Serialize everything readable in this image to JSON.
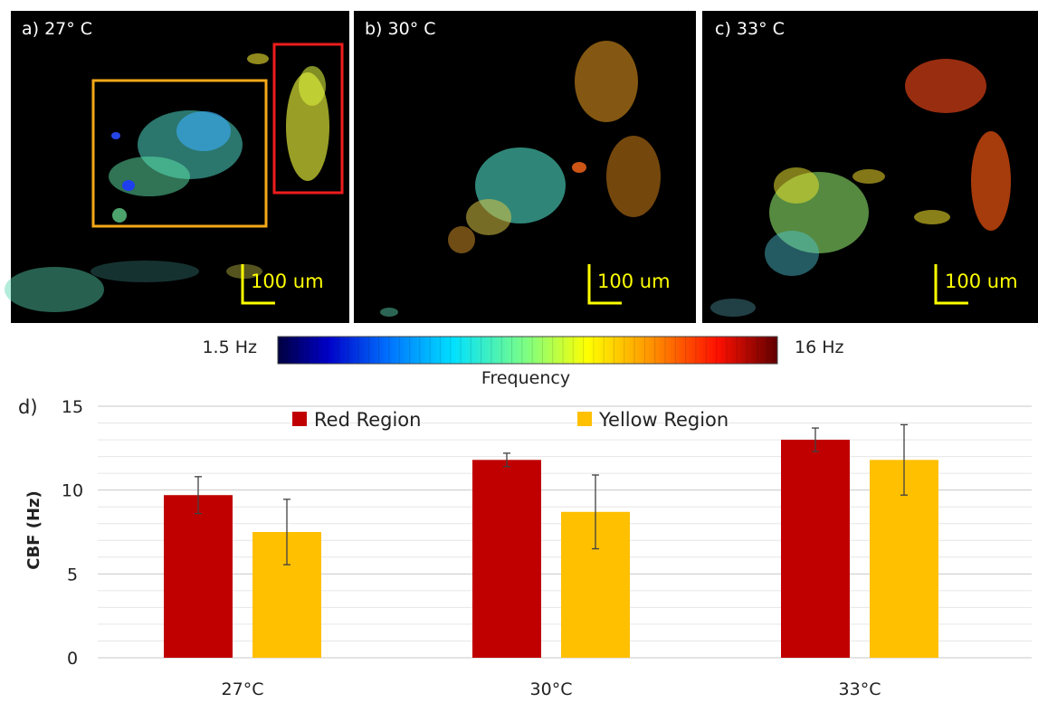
{
  "images": {
    "panels": [
      {
        "label": "a)  27° C",
        "scale_bar": "100 um"
      },
      {
        "label": "b) 30° C",
        "scale_bar": "100 um"
      },
      {
        "label": "c) 33° C",
        "scale_bar": "100 um"
      }
    ],
    "region_box_colors": {
      "red_region": "#ee1c1c",
      "yellow_region": "#f4a818"
    },
    "scale_bar_color": "#ffff00"
  },
  "colorbar": {
    "min_label": "1.5 Hz",
    "max_label": "16 Hz",
    "title": "Frequency",
    "colormap": "jet"
  },
  "chart_data": {
    "type": "bar",
    "panel_label": "d)",
    "categories": [
      "27°C",
      "30°C",
      "33°C"
    ],
    "series": [
      {
        "name": "Red Region",
        "color": "#c00000",
        "values": [
          9.7,
          11.8,
          13.0
        ],
        "errors": [
          1.1,
          0.4,
          0.7
        ]
      },
      {
        "name": "Yellow Region",
        "color": "#ffc000",
        "values": [
          7.5,
          8.7,
          11.8
        ],
        "errors": [
          1.95,
          2.2,
          2.1
        ]
      }
    ],
    "ylabel": "CBF (Hz)",
    "xlabel": "",
    "ylim": [
      0,
      15
    ],
    "yticks": [
      0,
      5,
      10,
      15
    ],
    "grid": true,
    "legend_position": "top"
  }
}
